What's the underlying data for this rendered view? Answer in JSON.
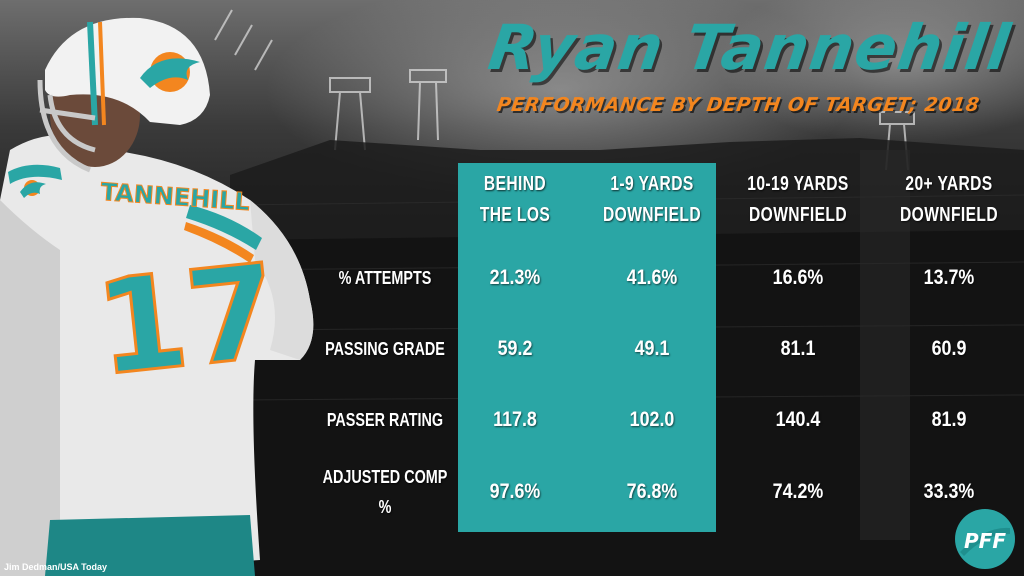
{
  "title": "Ryan Tannehill",
  "subtitle": "PERFORMANCE BY DEPTH OF TARGET; 2018",
  "columns": [
    "BEHIND\nTHE LOS",
    "1-9 YARDS\nDOWNFIELD",
    "10-19 YARDS\nDOWNFIELD",
    "20+ YARDS\nDOWNFIELD"
  ],
  "rows": [
    {
      "label": "% ATTEMPTS",
      "values": [
        "21.3%",
        "41.6%",
        "16.6%",
        "13.7%"
      ]
    },
    {
      "label": "PASSING GRADE",
      "values": [
        "59.2",
        "49.1",
        "81.1",
        "60.9"
      ]
    },
    {
      "label": "PASSER RATING",
      "values": [
        "117.8",
        "102.0",
        "140.4",
        "81.9"
      ]
    },
    {
      "label": "ADJUSTED COMP\n%",
      "values": [
        "97.6%",
        "76.8%",
        "74.2%",
        "33.3%"
      ]
    }
  ],
  "jersey": {
    "name": "TANNEHILL",
    "number": "17"
  },
  "photo_credit": "Jim Dedman/USA Today",
  "logo_text": "PFF",
  "colors": {
    "teal": "#2aa6a5",
    "orange": "#f3861f",
    "background": "#1a1a1a",
    "text": "#ffffff"
  },
  "icons": [
    "dolphins-logo-icon",
    "pff-logo-icon"
  ]
}
